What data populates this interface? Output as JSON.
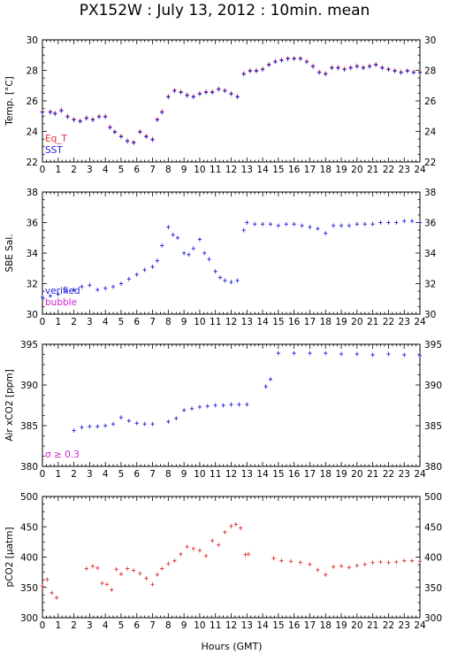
{
  "title": "PX152W : July 13, 2012 : 10min. mean",
  "xlabel": "Hours (GMT)",
  "colors": {
    "red": "#e03030",
    "blue": "#2020e0",
    "magenta": "#d020d0",
    "axis": "#000000"
  },
  "chart_data": [
    {
      "type": "scatter",
      "ylabel": "Temp. [°C]",
      "ylim": [
        22,
        30
      ],
      "yticks": [
        22,
        24,
        26,
        28,
        30
      ],
      "xlim": [
        0,
        24
      ],
      "legend": [
        {
          "name": "Eq_T",
          "color": "#e03030"
        },
        {
          "name": "SST",
          "color": "#2020e0"
        }
      ],
      "series": [
        {
          "name": "Eq_T",
          "color": "#e03030",
          "x": [
            0.0,
            0.5,
            0.8,
            1.2,
            1.6,
            2.0,
            2.4,
            2.8,
            3.2,
            3.6,
            4.0,
            4.3,
            4.6,
            5.0,
            5.4,
            5.8,
            6.2,
            6.6,
            7.0,
            7.3,
            7.6,
            8.0,
            8.4,
            8.8,
            9.2,
            9.6,
            10.0,
            10.4,
            10.8,
            11.2,
            11.6,
            12.0,
            12.4,
            12.8,
            13.2,
            13.6,
            14.0,
            14.4,
            14.8,
            15.2,
            15.6,
            16.0,
            16.4,
            16.8,
            17.2,
            17.6,
            18.0,
            18.4,
            18.8,
            19.2,
            19.6,
            20.0,
            20.4,
            20.8,
            21.2,
            21.6,
            22.0,
            22.4,
            22.8,
            23.2,
            23.6,
            24.0
          ],
          "y": [
            25.3,
            25.3,
            25.2,
            25.4,
            25.0,
            24.8,
            24.7,
            24.9,
            24.8,
            25.0,
            25.0,
            24.3,
            24.0,
            23.7,
            23.4,
            23.3,
            24.0,
            23.7,
            23.5,
            24.8,
            25.3,
            26.3,
            26.7,
            26.6,
            26.4,
            26.3,
            26.5,
            26.6,
            26.6,
            26.8,
            26.7,
            26.5,
            26.3,
            27.8,
            28.0,
            28.0,
            28.1,
            28.4,
            28.6,
            28.7,
            28.8,
            28.8,
            28.8,
            28.6,
            28.3,
            27.9,
            27.8,
            28.2,
            28.2,
            28.1,
            28.2,
            28.3,
            28.2,
            28.3,
            28.4,
            28.2,
            28.1,
            28.0,
            27.9,
            28.0,
            27.9,
            27.9
          ]
        },
        {
          "name": "SST",
          "color": "#2020e0",
          "x": [
            0.0,
            0.5,
            0.8,
            1.2,
            1.6,
            2.0,
            2.4,
            2.8,
            3.2,
            3.6,
            4.0,
            4.3,
            4.6,
            5.0,
            5.4,
            5.8,
            6.2,
            6.6,
            7.0,
            7.3,
            7.6,
            8.0,
            8.4,
            8.8,
            9.2,
            9.6,
            10.0,
            10.4,
            10.8,
            11.2,
            11.6,
            12.0,
            12.4,
            12.8,
            13.2,
            13.6,
            14.0,
            14.4,
            14.8,
            15.2,
            15.6,
            16.0,
            16.4,
            16.8,
            17.2,
            17.6,
            18.0,
            18.4,
            18.8,
            19.2,
            19.6,
            20.0,
            20.4,
            20.8,
            21.2,
            21.6,
            22.0,
            22.4,
            22.8,
            23.2,
            23.6,
            24.0
          ],
          "y": [
            25.25,
            25.25,
            25.15,
            25.35,
            24.95,
            24.75,
            24.65,
            24.85,
            24.75,
            24.95,
            24.95,
            24.25,
            23.95,
            23.65,
            23.35,
            23.25,
            23.95,
            23.65,
            23.45,
            24.75,
            25.25,
            26.25,
            26.65,
            26.55,
            26.35,
            26.25,
            26.45,
            26.55,
            26.55,
            26.75,
            26.65,
            26.45,
            26.25,
            27.75,
            27.95,
            27.95,
            28.05,
            28.35,
            28.55,
            28.65,
            28.75,
            28.75,
            28.75,
            28.55,
            28.25,
            27.85,
            27.75,
            28.15,
            28.15,
            28.05,
            28.15,
            28.25,
            28.15,
            28.25,
            28.35,
            28.15,
            28.05,
            27.95,
            27.85,
            27.95,
            27.85,
            27.85
          ]
        }
      ]
    },
    {
      "type": "scatter",
      "ylabel": "SBE Sal.",
      "ylim": [
        30,
        38
      ],
      "yticks": [
        30,
        32,
        34,
        36,
        38
      ],
      "xlim": [
        0,
        24
      ],
      "legend": [
        {
          "name": "verified",
          "color": "#2020e0"
        },
        {
          "name": "bubble",
          "color": "#d020d0"
        }
      ],
      "series": [
        {
          "name": "verified",
          "color": "#2020e0",
          "x": [
            0.0,
            0.5,
            1.0,
            1.5,
            2.0,
            2.5,
            3.0,
            3.5,
            4.0,
            4.5,
            5.0,
            5.5,
            6.0,
            6.5,
            7.0,
            7.3,
            7.6,
            8.0,
            8.3,
            8.6,
            9.0,
            9.3,
            9.6,
            10.0,
            10.3,
            10.6,
            11.0,
            11.3,
            11.6,
            12.0,
            12.4,
            12.8,
            13.0,
            13.5,
            14.0,
            14.5,
            15.0,
            15.5,
            16.0,
            16.5,
            17.0,
            17.5,
            18.0,
            18.5,
            19.0,
            19.5,
            20.0,
            20.5,
            21.0,
            21.5,
            22.0,
            22.5,
            23.0,
            23.5,
            24.0
          ],
          "y": [
            31.1,
            31.2,
            31.3,
            31.5,
            31.6,
            31.8,
            31.9,
            31.6,
            31.7,
            31.8,
            32.0,
            32.3,
            32.6,
            32.9,
            33.1,
            33.5,
            34.5,
            35.7,
            35.2,
            35.0,
            34.0,
            33.9,
            34.3,
            34.9,
            34.0,
            33.6,
            32.8,
            32.4,
            32.2,
            32.1,
            32.2,
            35.5,
            36.0,
            35.9,
            35.9,
            35.9,
            35.8,
            35.9,
            35.9,
            35.8,
            35.7,
            35.6,
            35.3,
            35.8,
            35.8,
            35.8,
            35.9,
            35.9,
            35.9,
            36.0,
            36.0,
            36.0,
            36.1,
            36.1,
            36.0
          ]
        }
      ]
    },
    {
      "type": "scatter",
      "ylabel": "Air xCO2 [ppm]",
      "ylim": [
        380,
        395
      ],
      "yticks": [
        380,
        385,
        390,
        395
      ],
      "xlim": [
        0,
        24
      ],
      "legend": [
        {
          "name": "σ ≥ 0.3",
          "color": "#d020d0"
        }
      ],
      "series": [
        {
          "name": "Air xCO2",
          "color": "#2020e0",
          "x": [
            2.0,
            2.5,
            3.0,
            3.5,
            4.0,
            4.5,
            5.0,
            5.5,
            6.0,
            6.5,
            7.0,
            8.0,
            8.5,
            9.0,
            9.5,
            10.0,
            10.5,
            11.0,
            11.5,
            12.0,
            12.5,
            13.0,
            14.2,
            14.5,
            15.0,
            16.0,
            17.0,
            18.0,
            19.0,
            20.0,
            21.0,
            22.0,
            23.0,
            24.0
          ],
          "y": [
            384.4,
            384.8,
            384.9,
            384.9,
            385.0,
            385.2,
            386.0,
            385.6,
            385.3,
            385.2,
            385.2,
            385.5,
            385.9,
            386.9,
            387.1,
            387.3,
            387.4,
            387.5,
            387.5,
            387.6,
            387.6,
            387.6,
            389.8,
            390.7,
            393.9,
            393.9,
            393.9,
            393.9,
            393.8,
            393.8,
            393.7,
            393.8,
            393.7,
            393.6
          ]
        }
      ]
    },
    {
      "type": "scatter",
      "ylabel": "pCO2 [μatm]",
      "ylim": [
        300,
        500
      ],
      "yticks": [
        300,
        350,
        400,
        450,
        500
      ],
      "xlim": [
        0,
        24
      ],
      "legend": [],
      "series": [
        {
          "name": "pCO2",
          "color": "#e03030",
          "x": [
            0.0,
            0.3,
            0.6,
            0.9,
            2.8,
            3.2,
            3.5,
            3.8,
            4.1,
            4.4,
            4.7,
            5.0,
            5.4,
            5.8,
            6.2,
            6.6,
            7.0,
            7.3,
            7.6,
            8.0,
            8.4,
            8.8,
            9.2,
            9.6,
            10.0,
            10.4,
            10.8,
            11.2,
            11.6,
            12.0,
            12.3,
            12.6,
            12.9,
            13.1,
            14.7,
            15.2,
            15.8,
            16.4,
            17.0,
            17.5,
            18.0,
            18.5,
            19.0,
            19.5,
            20.0,
            20.5,
            21.0,
            21.5,
            22.0,
            22.5,
            23.0,
            23.5,
            24.0
          ],
          "y": [
            352,
            363,
            341,
            333,
            381,
            385,
            382,
            357,
            355,
            346,
            380,
            372,
            381,
            378,
            373,
            365,
            355,
            371,
            381,
            389,
            394,
            405,
            417,
            414,
            411,
            402,
            427,
            420,
            441,
            451,
            454,
            448,
            404,
            405,
            398,
            394,
            393,
            391,
            388,
            379,
            371,
            384,
            385,
            383,
            386,
            388,
            391,
            392,
            391,
            392,
            394,
            394,
            393
          ]
        }
      ]
    }
  ]
}
